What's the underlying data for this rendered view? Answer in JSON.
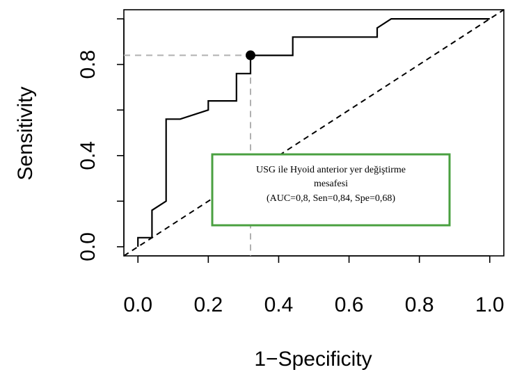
{
  "chart_data": {
    "type": "line",
    "xlabel": "1−Specificity",
    "ylabel": "Sensitivity",
    "xlim": [
      -0.04,
      1.04
    ],
    "ylim": [
      -0.04,
      1.04
    ],
    "x_ticks": [
      "0.0",
      "0.2",
      "0.4",
      "0.6",
      "0.8",
      "1.0"
    ],
    "x_tick_values": [
      0,
      0.2,
      0.4,
      0.6,
      0.8,
      1.0
    ],
    "y_ticks": [
      "0.0",
      "0.4",
      "0.8"
    ],
    "y_tick_values": [
      0,
      0.4,
      0.8
    ],
    "series": [
      {
        "x": [
          0,
          0,
          0.04,
          0.04,
          0.08,
          0.08,
          0.12,
          0.2,
          0.2,
          0.28,
          0.28,
          0.32,
          0.32,
          0.44,
          0.44,
          0.68,
          0.68,
          0.72,
          1.0
        ],
        "y": [
          0,
          0.04,
          0.04,
          0.16,
          0.2,
          0.56,
          0.56,
          0.6,
          0.64,
          0.64,
          0.76,
          0.76,
          0.84,
          0.84,
          0.92,
          0.92,
          0.96,
          1.0,
          1.0
        ]
      }
    ],
    "diagonal": true,
    "cutoff_point": {
      "x": 0.32,
      "y": 0.84
    },
    "legend": {
      "lines": [
        "USG ile Hyoid  anterior yer değiştirme",
        "mesafesi",
        "(AUC=0,8, Sen=0,84, Spe=0,68)"
      ],
      "border_color": "#4aa040"
    },
    "grid": false
  }
}
